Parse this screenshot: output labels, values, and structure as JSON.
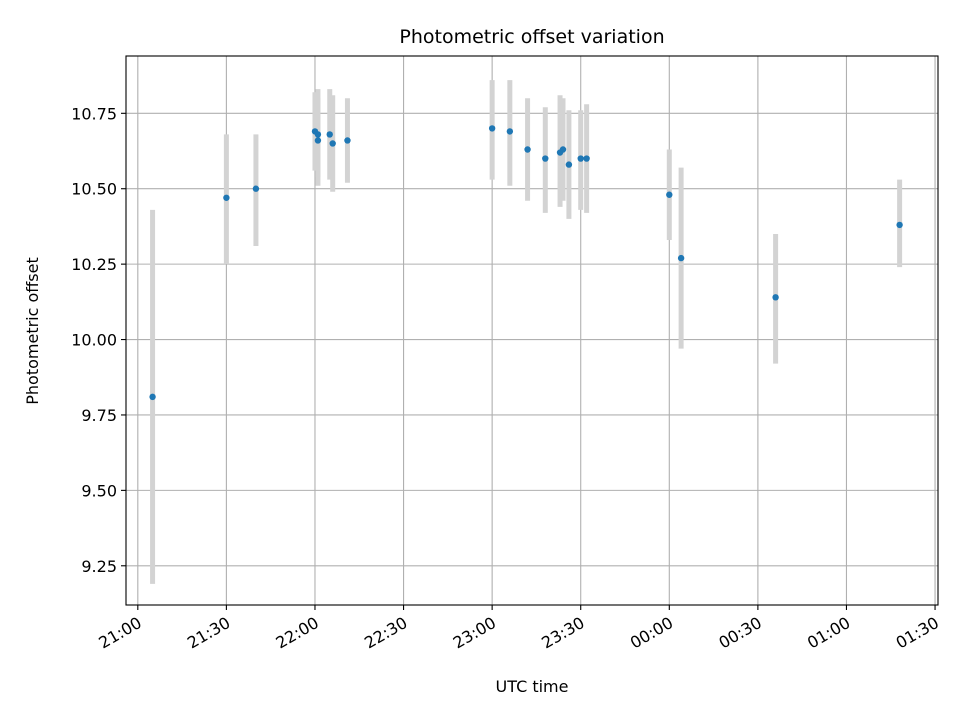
{
  "chart_data": {
    "type": "scatter",
    "title": "Photometric offset variation",
    "xlabel": "UTC time",
    "ylabel": "Photometric offset",
    "x_tick_labels": [
      "21:00",
      "21:30",
      "22:00",
      "22:30",
      "23:00",
      "23:30",
      "00:00",
      "00:30",
      "01:00",
      "01:30"
    ],
    "y_tick_labels": [
      "9.25",
      "9.50",
      "9.75",
      "10.00",
      "10.25",
      "10.50",
      "10.75"
    ],
    "ylim": [
      9.12,
      10.94
    ],
    "xlim": [
      "20:56",
      "01:31"
    ],
    "grid": true,
    "point_color": "#1f77b4",
    "errorbar_color": "#d3d3d3",
    "points": [
      {
        "time": "21:05",
        "offset": 9.81,
        "low": 9.19,
        "high": 10.43
      },
      {
        "time": "21:30",
        "offset": 10.47,
        "low": 10.25,
        "high": 10.68
      },
      {
        "time": "21:40",
        "offset": 10.5,
        "low": 10.31,
        "high": 10.68
      },
      {
        "time": "22:00",
        "offset": 10.69,
        "low": 10.56,
        "high": 10.82
      },
      {
        "time": "22:01",
        "offset": 10.68,
        "low": 10.54,
        "high": 10.83
      },
      {
        "time": "22:01",
        "offset": 10.66,
        "low": 10.51,
        "high": 10.8
      },
      {
        "time": "22:05",
        "offset": 10.68,
        "low": 10.53,
        "high": 10.83
      },
      {
        "time": "22:06",
        "offset": 10.65,
        "low": 10.49,
        "high": 10.81
      },
      {
        "time": "22:11",
        "offset": 10.66,
        "low": 10.52,
        "high": 10.8
      },
      {
        "time": "23:00",
        "offset": 10.7,
        "low": 10.53,
        "high": 10.86
      },
      {
        "time": "23:06",
        "offset": 10.69,
        "low": 10.51,
        "high": 10.86
      },
      {
        "time": "23:12",
        "offset": 10.63,
        "low": 10.46,
        "high": 10.8
      },
      {
        "time": "23:18",
        "offset": 10.6,
        "low": 10.42,
        "high": 10.77
      },
      {
        "time": "23:23",
        "offset": 10.62,
        "low": 10.44,
        "high": 10.81
      },
      {
        "time": "23:24",
        "offset": 10.63,
        "low": 10.46,
        "high": 10.8
      },
      {
        "time": "23:26",
        "offset": 10.58,
        "low": 10.4,
        "high": 10.76
      },
      {
        "time": "23:30",
        "offset": 10.6,
        "low": 10.43,
        "high": 10.76
      },
      {
        "time": "23:32",
        "offset": 10.6,
        "low": 10.42,
        "high": 10.78
      },
      {
        "time": "00:00",
        "offset": 10.48,
        "low": 10.33,
        "high": 10.63
      },
      {
        "time": "00:04",
        "offset": 10.27,
        "low": 9.97,
        "high": 10.57
      },
      {
        "time": "00:36",
        "offset": 10.14,
        "low": 9.92,
        "high": 10.35
      },
      {
        "time": "01:18",
        "offset": 10.38,
        "low": 10.24,
        "high": 10.53
      }
    ]
  }
}
